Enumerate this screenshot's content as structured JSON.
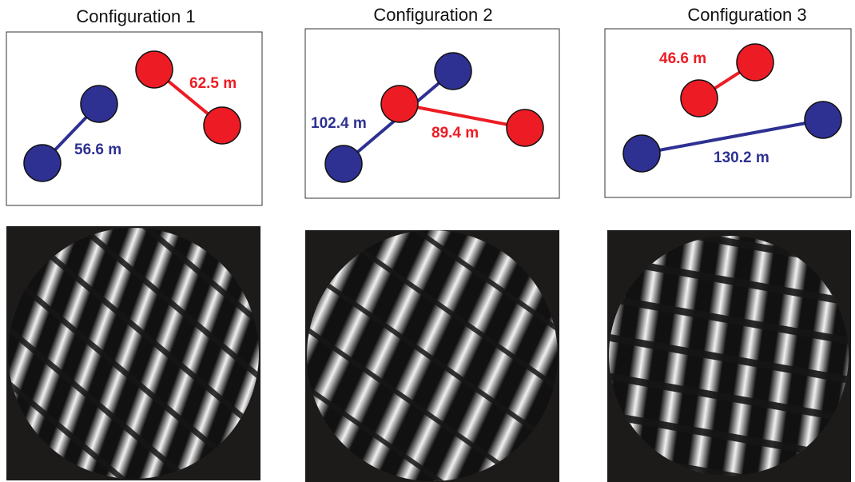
{
  "panels": [
    {
      "title": "Configuration 1",
      "baselines": [
        {
          "label": "56.6 m"
        },
        {
          "label": "62.5 m"
        }
      ]
    },
    {
      "title": "Configuration 2",
      "baselines": [
        {
          "label": "102.4 m"
        },
        {
          "label": "89.4 m"
        }
      ]
    },
    {
      "title": "Configuration 3",
      "baselines": [
        {
          "label": "46.6 m"
        },
        {
          "label": "130.2 m"
        }
      ]
    }
  ]
}
